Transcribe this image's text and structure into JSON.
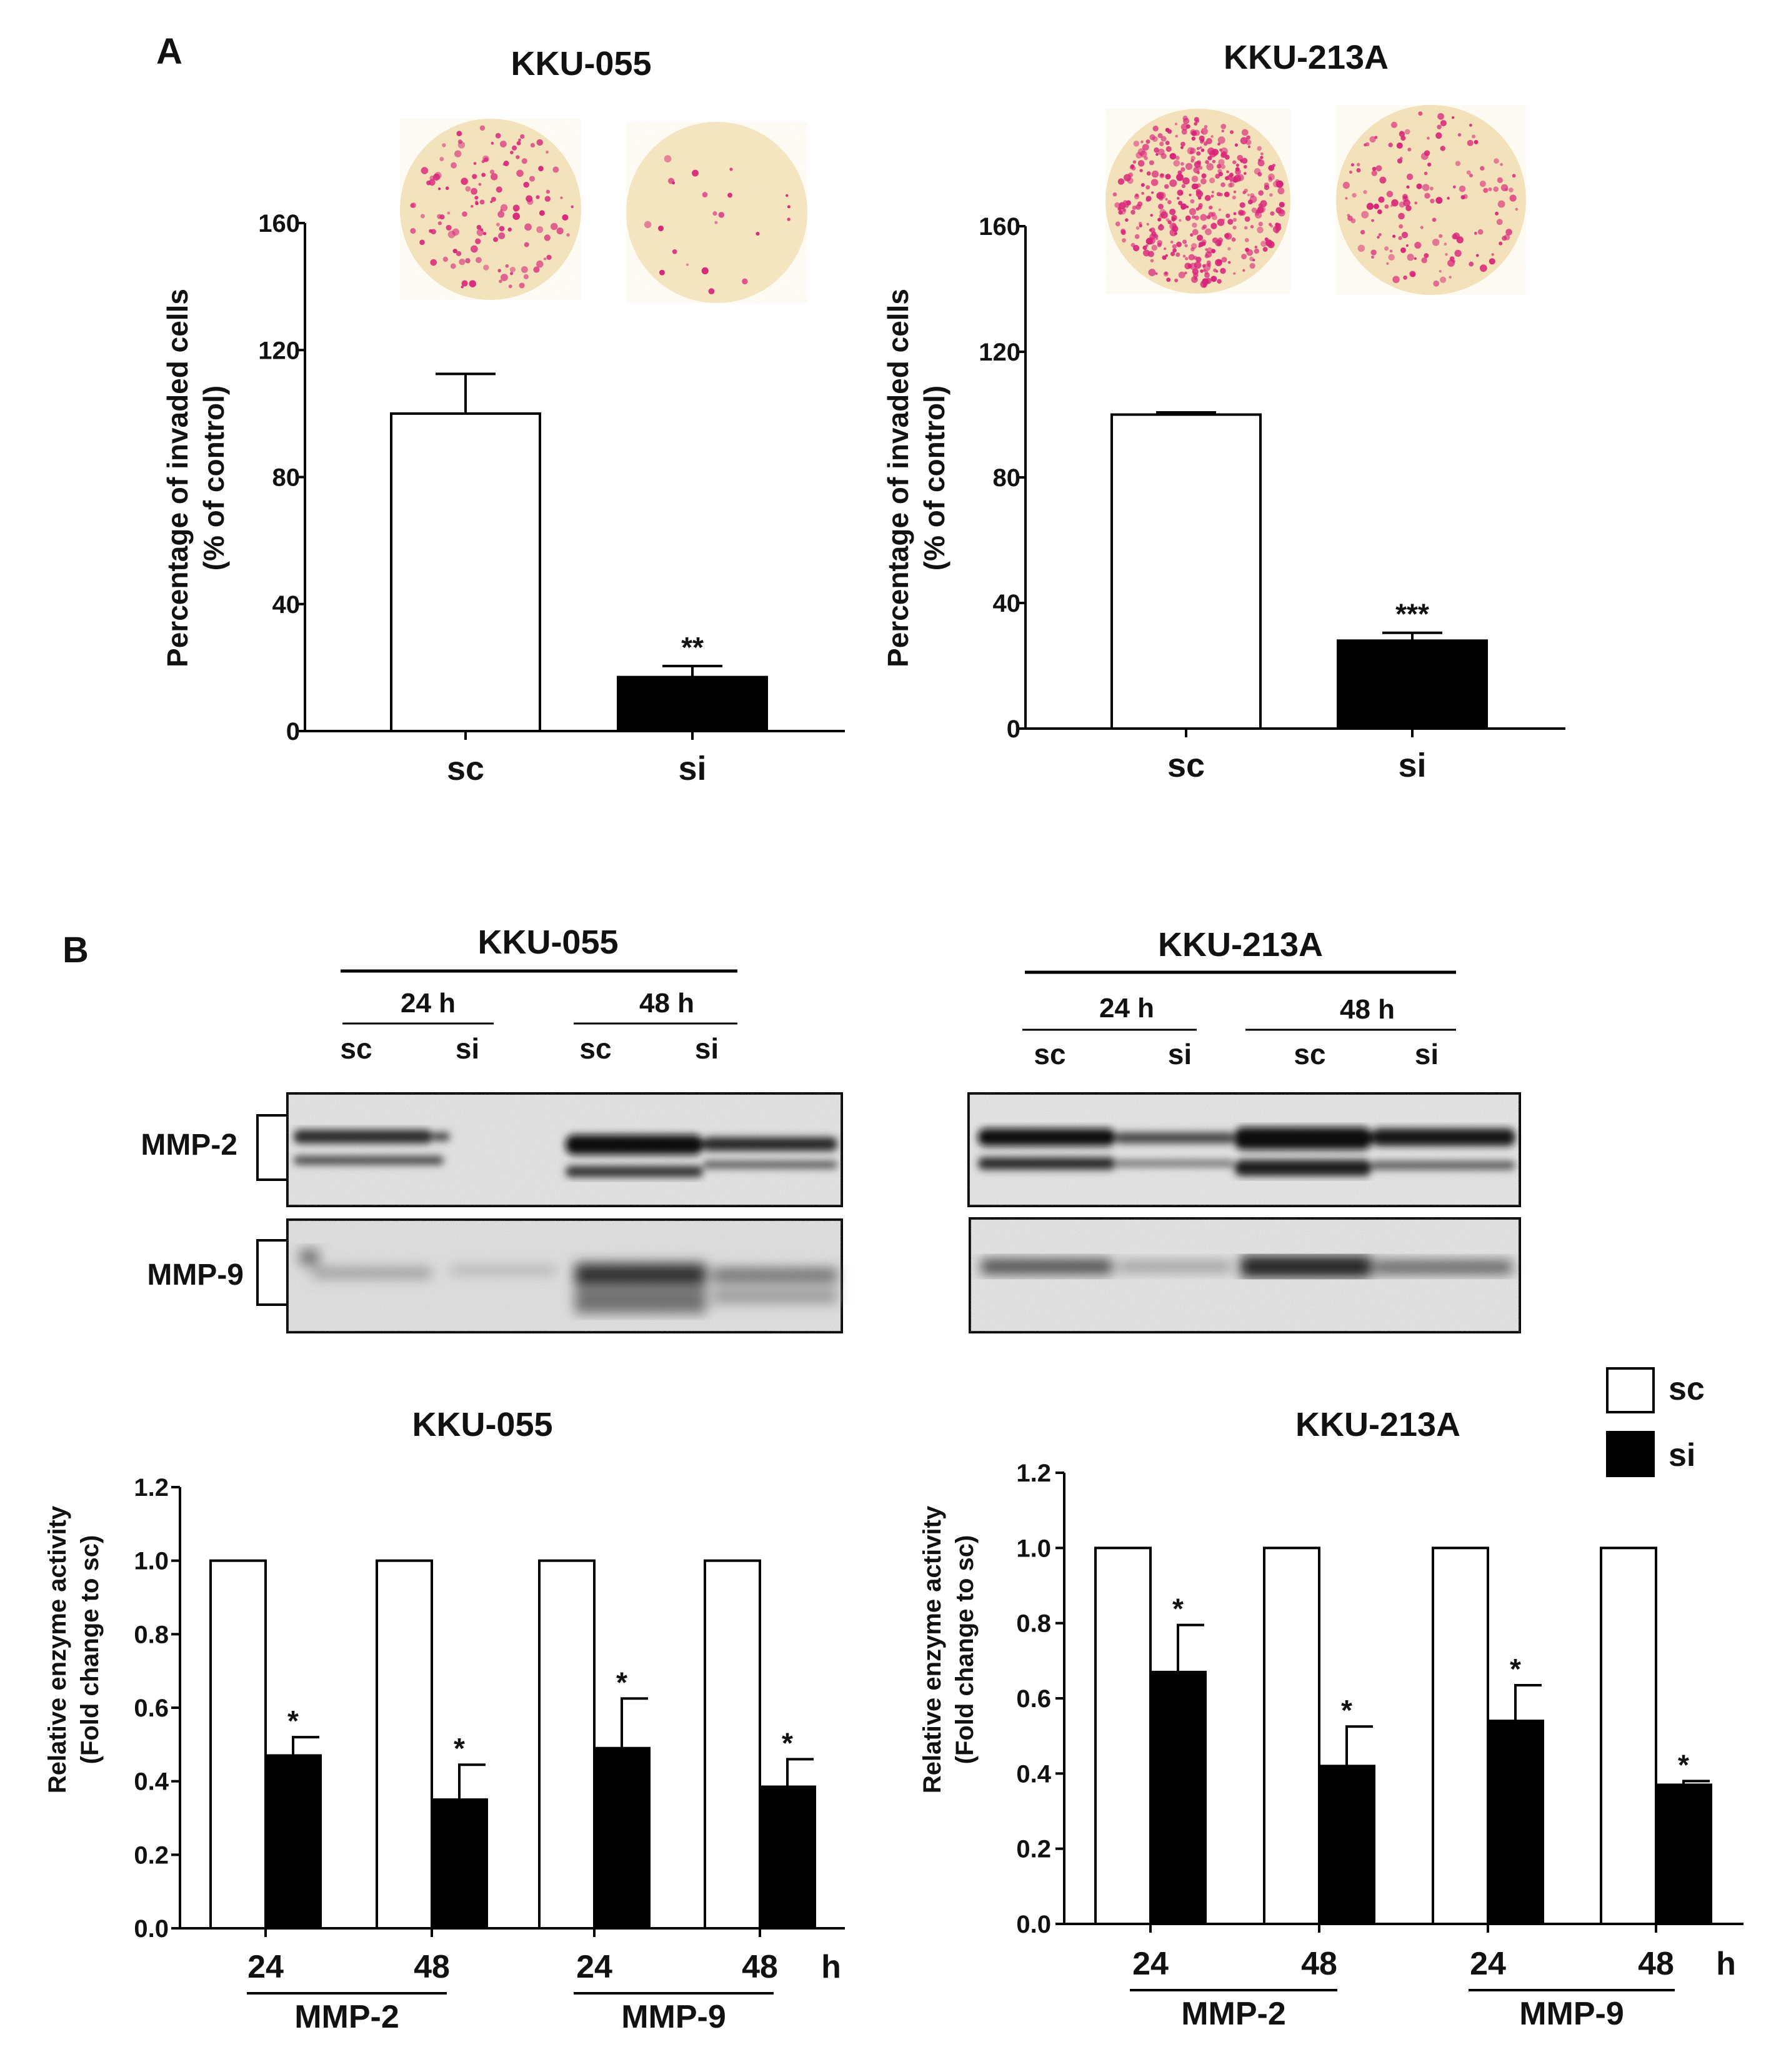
{
  "panels": {
    "a": "A",
    "b": "B"
  },
  "chart_data": [
    {
      "id": "invasion-kku055",
      "type": "bar",
      "title": "KKU-055",
      "ylabel": [
        "Percentage of invaded cells",
        "(% of control)"
      ],
      "categories": [
        "sc",
        "si"
      ],
      "values": [
        100,
        17
      ],
      "errors": [
        12.5,
        3.5
      ],
      "significance": [
        "",
        "**"
      ],
      "fills": [
        "#ffffff",
        "#000000"
      ],
      "ylim": [
        0,
        160
      ],
      "yticks": [
        0,
        40,
        80,
        120,
        160
      ]
    },
    {
      "id": "invasion-kku213a",
      "type": "bar",
      "title": "KKU-213A",
      "ylabel": [
        "Percentage of invaded cells",
        "(% of control)"
      ],
      "categories": [
        "sc",
        "si"
      ],
      "values": [
        100,
        28
      ],
      "errors": [
        0.7,
        2.5
      ],
      "significance": [
        "",
        "***"
      ],
      "fills": [
        "#ffffff",
        "#000000"
      ],
      "ylim": [
        0,
        160
      ],
      "yticks": [
        0,
        40,
        80,
        120,
        160
      ]
    },
    {
      "id": "enzyme-kku055",
      "type": "bar",
      "title": "KKU-055",
      "ylabel": [
        "Relative enzyme activity",
        "(Fold change to sc)"
      ],
      "categories": [
        "24",
        "48",
        "24",
        "48"
      ],
      "groups": [
        "MMP-2",
        "MMP-9"
      ],
      "unit": "h",
      "series": [
        {
          "name": "sc",
          "values": [
            1.0,
            1.0,
            1.0,
            1.0
          ],
          "errors": [
            0,
            0,
            0,
            0
          ],
          "significance": [
            "",
            "",
            "",
            ""
          ]
        },
        {
          "name": "si",
          "values": [
            0.47,
            0.35,
            0.49,
            0.385
          ],
          "errors": [
            0.05,
            0.095,
            0.135,
            0.075
          ],
          "significance": [
            "*",
            "*",
            "*",
            "*"
          ]
        }
      ],
      "ylim": [
        0,
        1.2
      ],
      "yticks": [
        "0.0",
        "0.2",
        "0.4",
        "0.6",
        "0.8",
        "1.0",
        "1.2"
      ]
    },
    {
      "id": "enzyme-kku213a",
      "type": "bar",
      "title": "KKU-213A",
      "ylabel": [
        "Relative enzyme activity",
        "(Fold change to sc)"
      ],
      "categories": [
        "24",
        "48",
        "24",
        "48"
      ],
      "groups": [
        "MMP-2",
        "MMP-9"
      ],
      "unit": "h",
      "series": [
        {
          "name": "sc",
          "values": [
            1.0,
            1.0,
            1.0,
            1.0
          ],
          "errors": [
            0,
            0,
            0,
            0
          ],
          "significance": [
            "",
            "",
            "",
            ""
          ]
        },
        {
          "name": "si",
          "values": [
            0.67,
            0.42,
            0.54,
            0.37
          ],
          "errors": [
            0.125,
            0.105,
            0.095,
            0.01
          ],
          "significance": [
            "*",
            "*",
            "*",
            "*"
          ]
        }
      ],
      "ylim": [
        0,
        1.2
      ],
      "yticks": [
        "0.0",
        "0.2",
        "0.4",
        "0.6",
        "0.8",
        "1.0",
        "1.2"
      ]
    }
  ],
  "blots": {
    "left": {
      "title": "KKU-055",
      "times": [
        "24 h",
        "48 h"
      ],
      "lanes": [
        "sc",
        "si",
        "sc",
        "si"
      ]
    },
    "right": {
      "title": "KKU-213A",
      "times": [
        "24 h",
        "48 h"
      ],
      "lanes": [
        "sc",
        "si",
        "sc",
        "si"
      ]
    },
    "rows": [
      "MMP-2",
      "MMP-9"
    ]
  },
  "legend": [
    "sc",
    "si"
  ]
}
